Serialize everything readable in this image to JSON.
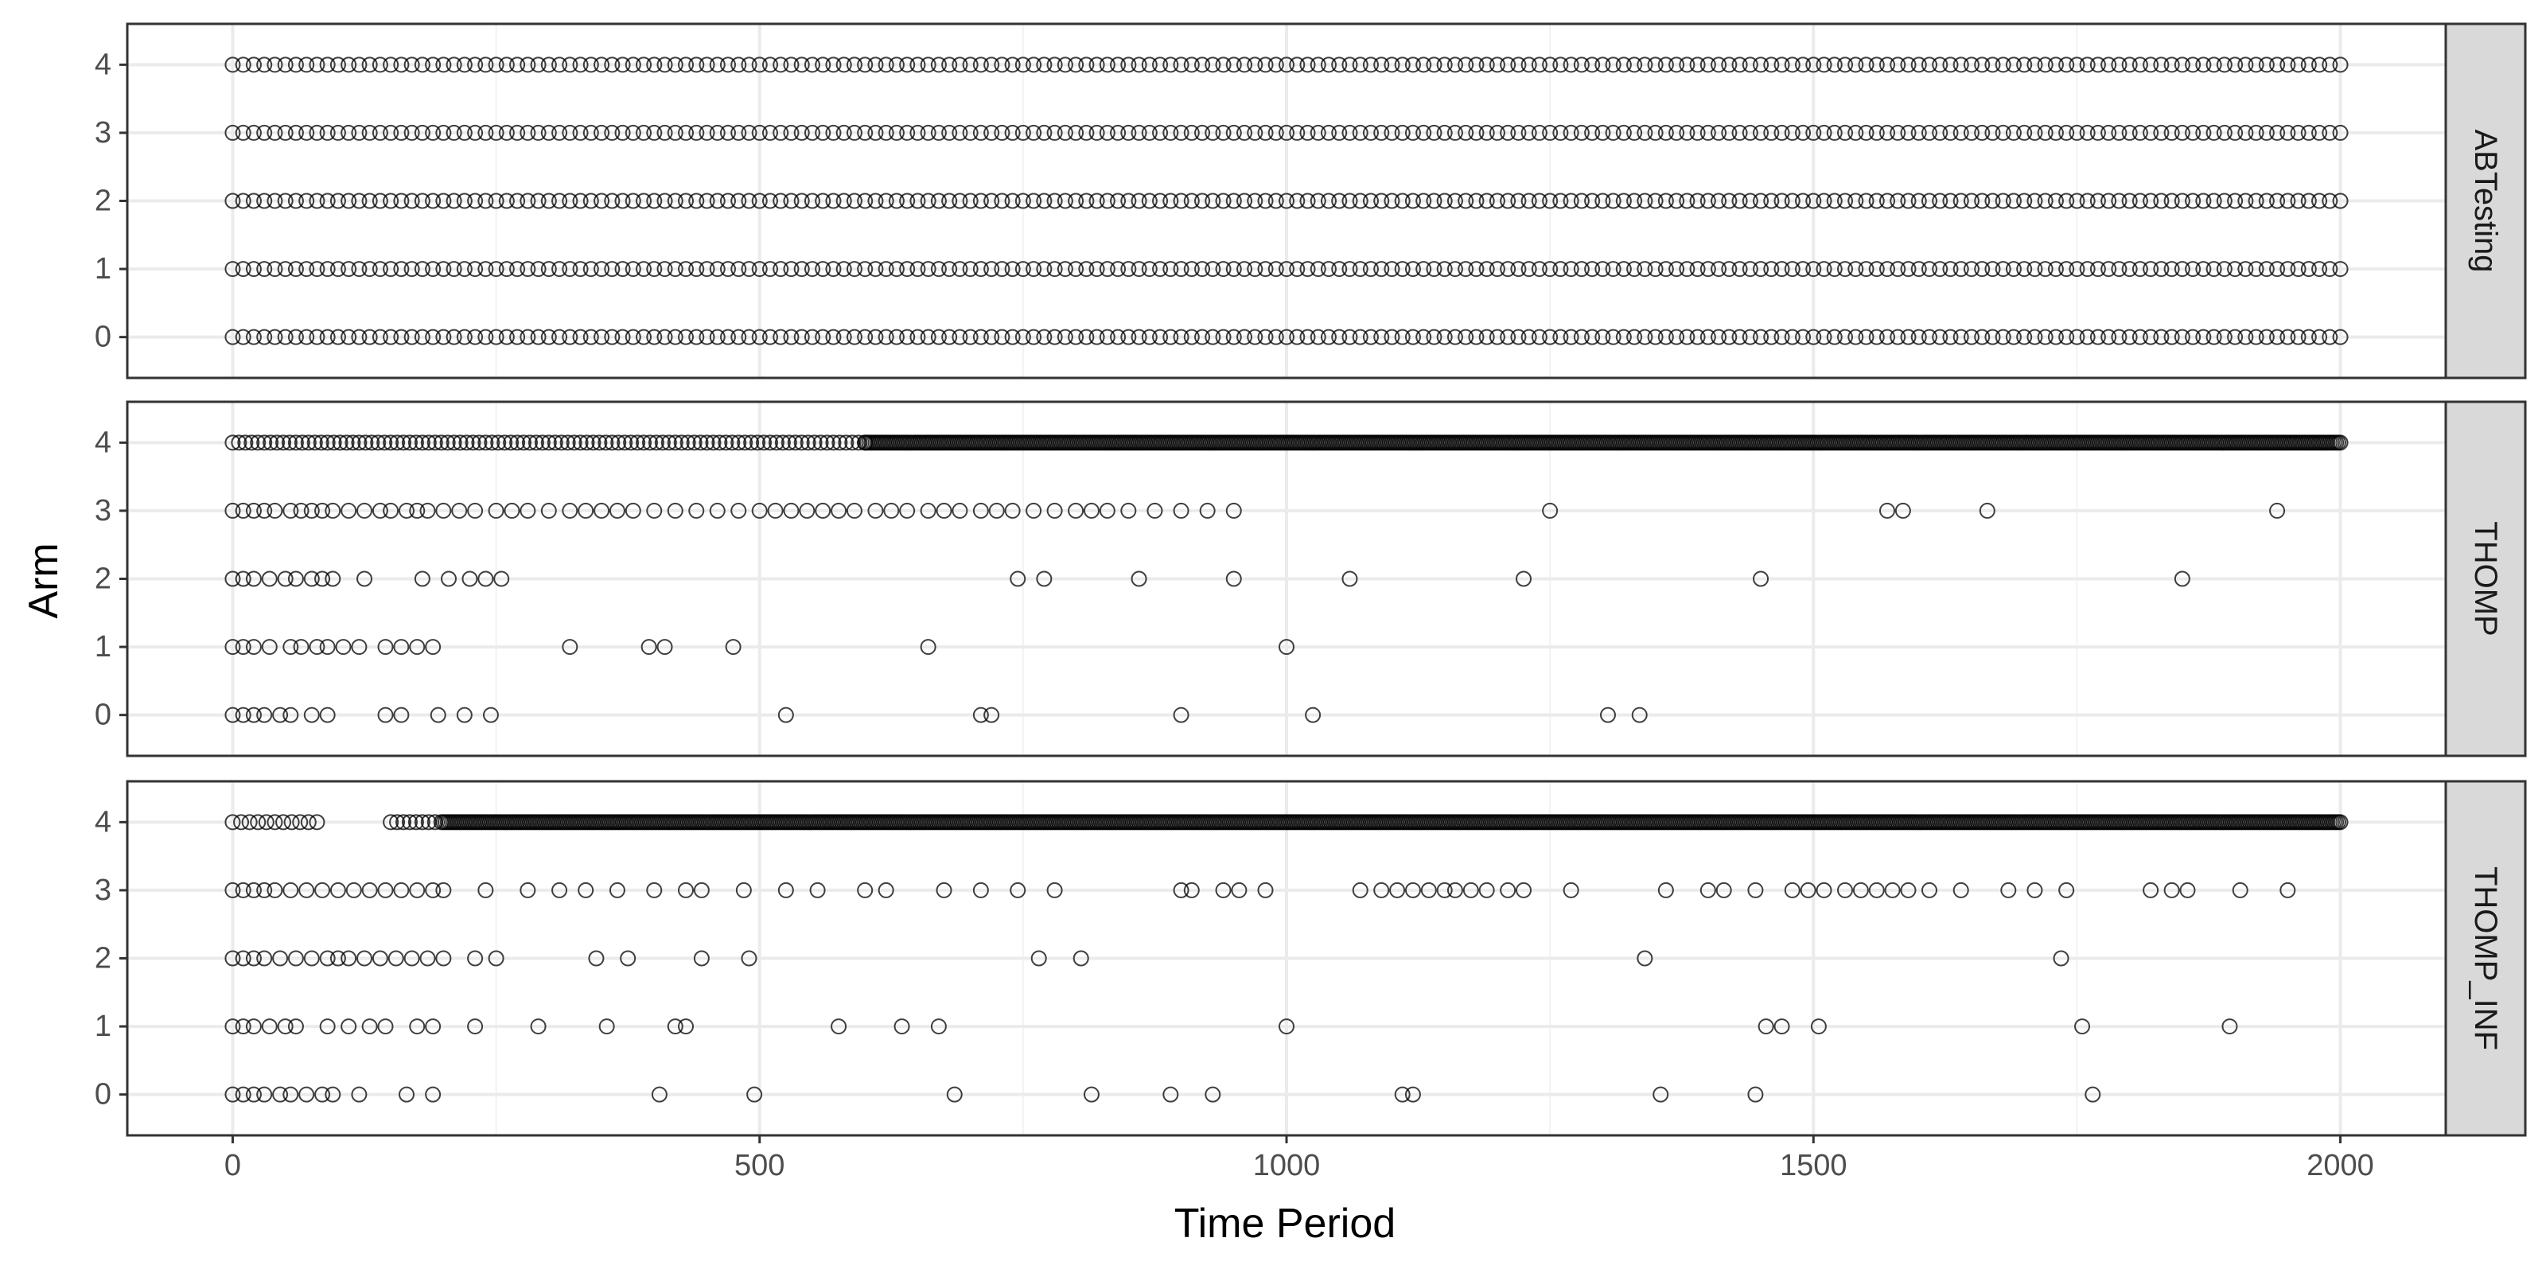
{
  "chart_data": {
    "type": "scatter",
    "title": "",
    "xlabel": "Time Period",
    "ylabel": "Arm",
    "xlim": [
      -100,
      2100
    ],
    "ylim": [
      -0.6,
      4.6
    ],
    "x_ticks": [
      0,
      500,
      1000,
      1500,
      2000
    ],
    "y_ticks": [
      0,
      1,
      2,
      3,
      4
    ],
    "grid": true,
    "marker": "open-circle",
    "facets": [
      {
        "label": "ABTesting",
        "dense_ranges": [
          {
            "arm": 4,
            "from": 0,
            "to": 2000,
            "step": 10
          },
          {
            "arm": 3,
            "from": 0,
            "to": 2000,
            "step": 10
          },
          {
            "arm": 2,
            "from": 0,
            "to": 2000,
            "step": 10
          },
          {
            "arm": 1,
            "from": 0,
            "to": 2000,
            "step": 10
          },
          {
            "arm": 0,
            "from": 0,
            "to": 2000,
            "step": 10
          }
        ],
        "points": []
      },
      {
        "label": "THOMP",
        "dense_ranges": [
          {
            "arm": 4,
            "from": 0,
            "to": 600,
            "step": 6
          },
          {
            "arm": 4,
            "from": 600,
            "to": 2000,
            "step": 2
          }
        ],
        "points": [
          {
            "arm": 3,
            "x": [
              0,
              10,
              20,
              30,
              40,
              55,
              65,
              75,
              85,
              95,
              110,
              125,
              140,
              150,
              165,
              175,
              185,
              200,
              215,
              230,
              250,
              265,
              280,
              300,
              320,
              335,
              350,
              365,
              380,
              400,
              420,
              440,
              460,
              480,
              500,
              515,
              530,
              545,
              560,
              575,
              590,
              610,
              625,
              640,
              660,
              675,
              690,
              710,
              725,
              740,
              760,
              780,
              800,
              815,
              830,
              850,
              875,
              900,
              925,
              950,
              1250,
              1570,
              1585,
              1665,
              1940
            ]
          },
          {
            "arm": 2,
            "x": [
              0,
              10,
              20,
              35,
              50,
              60,
              75,
              85,
              95,
              125,
              180,
              205,
              225,
              240,
              255,
              745,
              770,
              860,
              950,
              1060,
              1225,
              1450,
              1850
            ]
          },
          {
            "arm": 1,
            "x": [
              0,
              10,
              20,
              35,
              55,
              65,
              80,
              90,
              105,
              120,
              145,
              160,
              175,
              190,
              320,
              395,
              410,
              475,
              660,
              1000
            ]
          },
          {
            "arm": 0,
            "x": [
              0,
              10,
              20,
              30,
              45,
              55,
              75,
              90,
              145,
              160,
              195,
              220,
              245,
              525,
              710,
              720,
              900,
              1025,
              1305,
              1335
            ]
          }
        ]
      },
      {
        "label": "THOMP_INF",
        "dense_ranges": [
          {
            "arm": 4,
            "from": 0,
            "to": 80,
            "step": 8
          },
          {
            "arm": 4,
            "from": 150,
            "to": 200,
            "step": 6
          },
          {
            "arm": 4,
            "from": 200,
            "to": 2000,
            "step": 2
          }
        ],
        "points": [
          {
            "arm": 3,
            "x": [
              0,
              10,
              20,
              30,
              40,
              55,
              70,
              85,
              100,
              115,
              130,
              145,
              160,
              175,
              190,
              200,
              240,
              280,
              310,
              335,
              365,
              400,
              430,
              445,
              485,
              525,
              555,
              600,
              620,
              675,
              710,
              745,
              780,
              900,
              910,
              940,
              955,
              980,
              1070,
              1090,
              1105,
              1120,
              1135,
              1150,
              1160,
              1175,
              1190,
              1210,
              1225,
              1270,
              1360,
              1400,
              1415,
              1445,
              1480,
              1495,
              1510,
              1530,
              1545,
              1560,
              1575,
              1590,
              1610,
              1640,
              1685,
              1710,
              1740,
              1820,
              1840,
              1855,
              1905,
              1950
            ]
          },
          {
            "arm": 2,
            "x": [
              0,
              10,
              20,
              30,
              45,
              60,
              75,
              90,
              100,
              110,
              125,
              140,
              155,
              170,
              185,
              200,
              230,
              250,
              345,
              375,
              445,
              490,
              765,
              805,
              1340,
              1735
            ]
          },
          {
            "arm": 1,
            "x": [
              0,
              10,
              20,
              35,
              50,
              60,
              90,
              110,
              130,
              145,
              175,
              190,
              230,
              290,
              355,
              420,
              430,
              575,
              635,
              670,
              1000,
              1455,
              1470,
              1505,
              1755,
              1895
            ]
          },
          {
            "arm": 0,
            "x": [
              0,
              10,
              20,
              30,
              45,
              55,
              70,
              85,
              95,
              120,
              165,
              190,
              405,
              495,
              685,
              815,
              890,
              930,
              1110,
              1120,
              1355,
              1445,
              1765
            ]
          }
        ]
      }
    ]
  }
}
